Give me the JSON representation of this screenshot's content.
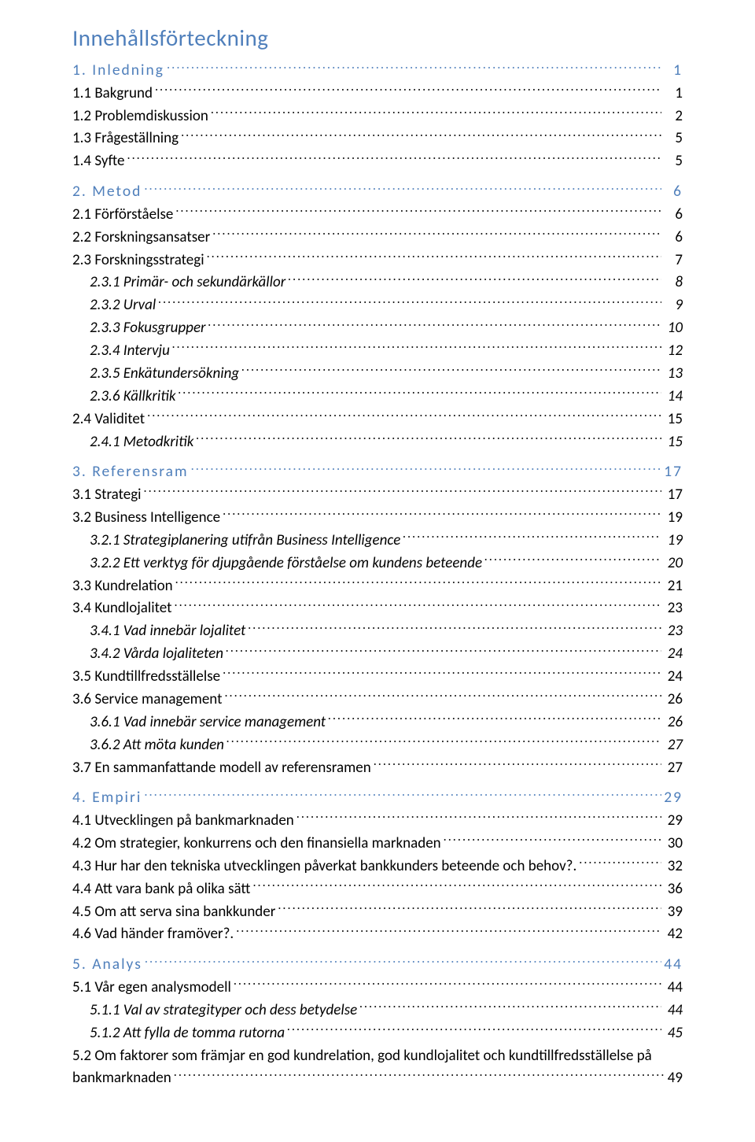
{
  "title": "Innehållsförteckning",
  "colors": {
    "heading": "#4f7fbb",
    "body": "#000000",
    "background": "#ffffff"
  },
  "typography": {
    "title_fontsize_pt": 22,
    "entry_fontsize_pt": 14,
    "font_family": "Calibri"
  },
  "entries": [
    {
      "level": 1,
      "label": "1. Inledning",
      "page": "1"
    },
    {
      "level": 2,
      "label": "1.1 Bakgrund",
      "page": "1"
    },
    {
      "level": 2,
      "label": "1.2 Problemdiskussion",
      "page": "2"
    },
    {
      "level": 2,
      "label": "1.3 Frågeställning",
      "page": "5"
    },
    {
      "level": 2,
      "label": "1.4 Syfte",
      "page": "5"
    },
    {
      "level": 1,
      "label": "2. Metod",
      "page": "6"
    },
    {
      "level": 2,
      "label": "2.1 Förförståelse",
      "page": "6"
    },
    {
      "level": 2,
      "label": "2.2 Forskningsansatser",
      "page": "6"
    },
    {
      "level": 2,
      "label": "2.3 Forskningsstrategi",
      "page": "7"
    },
    {
      "level": 3,
      "label": "2.3.1 Primär- och sekundärkällor",
      "page": "8"
    },
    {
      "level": 3,
      "label": "2.3.2 Urval",
      "page": "9"
    },
    {
      "level": 3,
      "label": "2.3.3 Fokusgrupper",
      "page": "10"
    },
    {
      "level": 3,
      "label": "2.3.4 Intervju",
      "page": "12"
    },
    {
      "level": 3,
      "label": "2.3.5 Enkätundersökning",
      "page": "13"
    },
    {
      "level": 3,
      "label": "2.3.6 Källkritik",
      "page": "14"
    },
    {
      "level": 2,
      "label": "2.4 Validitet",
      "page": "15"
    },
    {
      "level": 3,
      "label": "2.4.1 Metodkritik",
      "page": "15"
    },
    {
      "level": 1,
      "label": "3. Referensram",
      "page": "17"
    },
    {
      "level": 2,
      "label": "3.1 Strategi",
      "page": "17"
    },
    {
      "level": 2,
      "label": "3.2 Business Intelligence",
      "page": "19"
    },
    {
      "level": 3,
      "label": "3.2.1 Strategiplanering utifrån Business Intelligence",
      "page": "19"
    },
    {
      "level": 3,
      "label": "3.2.2 Ett verktyg för djupgående förståelse om kundens beteende",
      "page": "20"
    },
    {
      "level": 2,
      "label": "3.3 Kundrelation",
      "page": "21"
    },
    {
      "level": 2,
      "label": "3.4 Kundlojalitet",
      "page": "23"
    },
    {
      "level": 3,
      "label": "3.4.1 Vad innebär lojalitet",
      "page": "23"
    },
    {
      "level": 3,
      "label": "3.4.2 Vårda lojaliteten",
      "page": "24"
    },
    {
      "level": 2,
      "label": "3.5 Kundtillfredsställelse",
      "page": "24"
    },
    {
      "level": 2,
      "label": "3.6 Service management",
      "page": "26"
    },
    {
      "level": 3,
      "label": "3.6.1 Vad innebär service management",
      "page": "26"
    },
    {
      "level": 3,
      "label": "3.6.2 Att möta kunden",
      "page": "27"
    },
    {
      "level": 2,
      "label": "3.7 En sammanfattande modell av referensramen",
      "page": "27"
    },
    {
      "level": 1,
      "label": "4. Empiri",
      "page": "29"
    },
    {
      "level": 2,
      "label": "4.1 Utvecklingen på bankmarknaden",
      "page": "29"
    },
    {
      "level": 2,
      "label": "4.2  Om strategier, konkurrens och den finansiella marknaden",
      "page": "30"
    },
    {
      "level": 2,
      "label": "4.3 Hur har den tekniska utvecklingen påverkat bankkunders beteende och behov?.",
      "page": "32"
    },
    {
      "level": 2,
      "label": "4.4 Att vara bank på olika sätt",
      "page": "36"
    },
    {
      "level": 2,
      "label": "4.5 Om att serva sina bankkunder",
      "page": "39"
    },
    {
      "level": 2,
      "label": "4.6 Vad händer framöver?.",
      "page": "42"
    },
    {
      "level": 1,
      "label": "5. Analys",
      "page": "44"
    },
    {
      "level": 2,
      "label": "5.1 Vår egen analysmodell",
      "page": "44"
    },
    {
      "level": 3,
      "label": "5.1.1 Val av strategityper och dess betydelse",
      "page": "44"
    },
    {
      "level": 3,
      "label": "5.1.2 Att fylla de tomma rutorna",
      "page": "45"
    },
    {
      "level": 2,
      "wrap": true,
      "label_line1": "5.2 Om faktorer som främjar en god kundrelation, god kundlojalitet och kundtillfredsställelse på",
      "label_line2": "bankmarknaden",
      "page": "49"
    }
  ]
}
